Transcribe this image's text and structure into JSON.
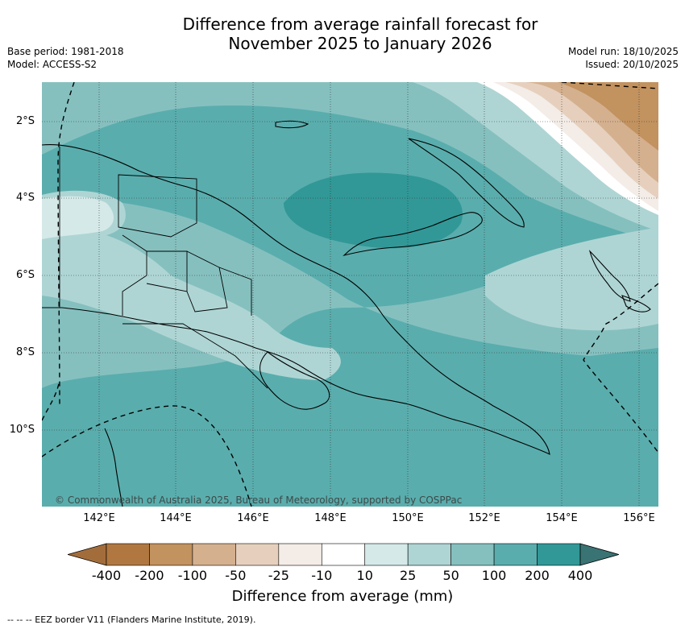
{
  "title": {
    "line1": "Difference from average rainfall forecast for",
    "line2": "November 2025 to January 2026"
  },
  "meta": {
    "base_period": "Base period: 1981-2018",
    "model": "Model: ACCESS-S2",
    "model_run": "Model run: 18/10/2025",
    "issued": "Issued: 20/10/2025"
  },
  "map": {
    "lat_ticks": [
      "2°S",
      "4°S",
      "6°S",
      "8°S",
      "10°S"
    ],
    "lon_ticks": [
      "142°E",
      "144°E",
      "146°E",
      "148°E",
      "150°E",
      "152°E",
      "154°E",
      "156°E"
    ],
    "copyright": "© Commonwealth of Australia 2025, Bureau of Meteorology, supported by COSPPac"
  },
  "colorbar": {
    "labels": [
      "-400",
      "-200",
      "-100",
      "-50",
      "-25",
      "-10",
      "10",
      "25",
      "50",
      "100",
      "200",
      "400"
    ],
    "colors": [
      "#a36d3b",
      "#b07840",
      "#c2925f",
      "#d4b08f",
      "#e6d0bd",
      "#f3ece7",
      "#ffffff",
      "#d5e9e8",
      "#aed5d4",
      "#85c0bf",
      "#5aadad",
      "#319897",
      "#3a7373"
    ],
    "title": "Difference from average (mm)"
  },
  "legend": {
    "eez_text": "--  --  -- EEZ border V11 (Flanders Marine Institute, 2019)."
  }
}
